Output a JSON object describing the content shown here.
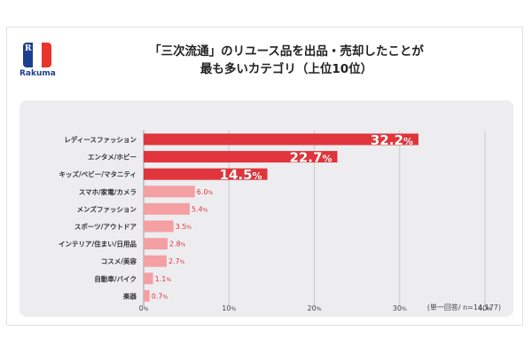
{
  "logo": {
    "text": "Rakuma",
    "letter": "R"
  },
  "title_lines": [
    "「三次流通」のリユース品を出品・売却したことが",
    "最も多いカテゴリ（上位10位）"
  ],
  "note": "(単一回答/ n=14,177)",
  "colors": {
    "dark_bar": "#e0353c",
    "light_bar": "#f4a0a3",
    "panel": "#ededf0",
    "grid": "#c9c9cf"
  },
  "chart_data": {
    "type": "bar",
    "orientation": "horizontal",
    "title": "「三次流通」のリユース品を出品・売却したことが最も多いカテゴリ（上位10位）",
    "categories": [
      "レディースファッション",
      "エンタメ/ホビー",
      "キッズ/ベビー/マタニティ",
      "スマホ/家電/カメラ",
      "メンズファッション",
      "スポーツ/アウトドア",
      "インテリア/住まい/日用品",
      "コスメ/美容",
      "自動車/バイク",
      "楽器"
    ],
    "values": [
      32.2,
      22.7,
      14.5,
      6.0,
      5.4,
      3.5,
      2.8,
      2.7,
      1.1,
      0.7
    ],
    "value_labels": [
      {
        "num": "32.2",
        "pct": "%"
      },
      {
        "num": "22.7",
        "pct": "%"
      },
      {
        "num": "14.5",
        "pct": "%"
      },
      {
        "num": "6.0",
        "pct": "%"
      },
      {
        "num": "5.4",
        "pct": "%"
      },
      {
        "num": "3.5",
        "pct": "%"
      },
      {
        "num": "2.8",
        "pct": "%"
      },
      {
        "num": "2.7",
        "pct": "%"
      },
      {
        "num": "1.1",
        "pct": "%"
      },
      {
        "num": "0.7",
        "pct": "%"
      }
    ],
    "highlight_top": 3,
    "xlim": [
      0,
      40
    ],
    "ticks": [
      {
        "num": "0",
        "pct": "%",
        "value": 0
      },
      {
        "num": "10",
        "pct": "%",
        "value": 10
      },
      {
        "num": "20",
        "pct": "%",
        "value": 20
      },
      {
        "num": "30",
        "pct": "%",
        "value": 30
      },
      {
        "num": "40",
        "pct": "%",
        "value": 40
      }
    ],
    "grid": true,
    "legend": "none"
  }
}
